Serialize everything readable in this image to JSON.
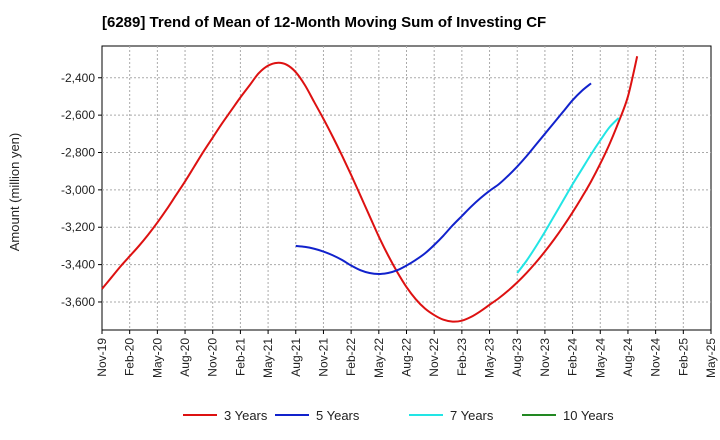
{
  "chart_data": {
    "type": "line",
    "title": "[6289]  Trend of Mean of 12-Month Moving Sum of Investing CF",
    "xlabel": "",
    "ylabel": "Amount (million yen)",
    "ylim": [
      -3750,
      -2230
    ],
    "y_ticks": [
      -3600,
      -3400,
      -3200,
      -3000,
      -2800,
      -2600,
      -2400
    ],
    "y_tick_labels": [
      "-3,600",
      "-3,400",
      "-3,200",
      "-3,000",
      "-2,800",
      "-2,600",
      "-2,400"
    ],
    "x_tick_labels": [
      "Nov-19",
      "Feb-20",
      "May-20",
      "Aug-20",
      "Nov-20",
      "Feb-21",
      "May-21",
      "Aug-21",
      "Nov-21",
      "Feb-22",
      "May-22",
      "Aug-22",
      "Nov-22",
      "Feb-23",
      "May-23",
      "Aug-23",
      "Nov-23",
      "Feb-24",
      "May-24",
      "Aug-24",
      "Nov-24",
      "Feb-25",
      "May-25"
    ],
    "x_month_count": 67,
    "grid": true,
    "legend_position": "bottom",
    "series": [
      {
        "name": "3 Years",
        "color": "#dd1111",
        "start_index": 0,
        "values": [
          -3530,
          -3470,
          -3410,
          -3355,
          -3300,
          -3240,
          -3175,
          -3105,
          -3030,
          -2955,
          -2875,
          -2795,
          -2720,
          -2645,
          -2575,
          -2505,
          -2440,
          -2375,
          -2335,
          -2320,
          -2330,
          -2370,
          -2440,
          -2530,
          -2620,
          -2715,
          -2815,
          -2920,
          -3030,
          -3140,
          -3250,
          -3350,
          -3440,
          -3520,
          -3585,
          -3635,
          -3670,
          -3695,
          -3705,
          -3700,
          -3680,
          -3650,
          -3615,
          -3580,
          -3540,
          -3495,
          -3445,
          -3390,
          -3330,
          -3265,
          -3195,
          -3120,
          -3040,
          -2955,
          -2860,
          -2755,
          -2635,
          -2500,
          -2285
        ]
      },
      {
        "name": "5 Years",
        "color": "#1122cc",
        "start_index": 21,
        "values": [
          -3300,
          -3305,
          -3315,
          -3330,
          -3350,
          -3375,
          -3405,
          -3430,
          -3445,
          -3450,
          -3445,
          -3430,
          -3405,
          -3375,
          -3340,
          -3295,
          -3245,
          -3190,
          -3140,
          -3090,
          -3045,
          -3005,
          -2970,
          -2925,
          -2875,
          -2820,
          -2760,
          -2700,
          -2640,
          -2580,
          -2520,
          -2470,
          -2430
        ]
      },
      {
        "name": "7 Years",
        "color": "#22e5e5",
        "start_index": 45,
        "values": [
          -3445,
          -3380,
          -3305,
          -3225,
          -3140,
          -3055,
          -2970,
          -2890,
          -2810,
          -2735,
          -2665,
          -2615
        ]
      },
      {
        "name": "10 Years",
        "color": "#228822",
        "start_index": 0,
        "values": []
      }
    ]
  }
}
